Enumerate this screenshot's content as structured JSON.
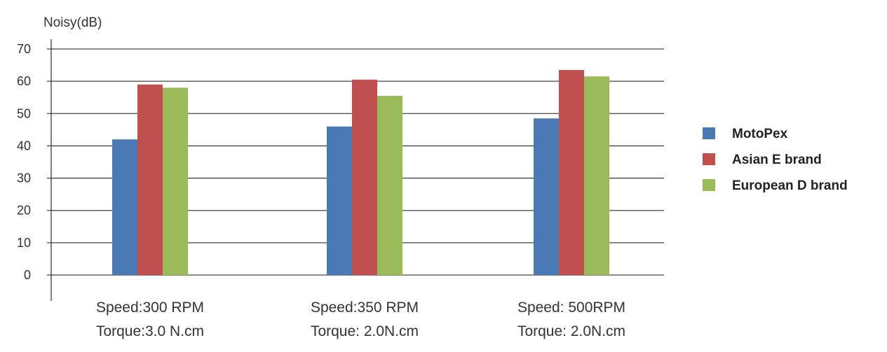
{
  "chart_data": {
    "type": "bar",
    "ylabel": "Noisy(dB)",
    "ylim": [
      0,
      70
    ],
    "yticks": [
      "0",
      "10",
      "20",
      "30",
      "40",
      "50",
      "60",
      "70"
    ],
    "grid": true,
    "legend_position": "right",
    "categories": [
      {
        "line1": "Speed:300 RPM",
        "line2": "Torque:3.0 N.cm"
      },
      {
        "line1": "Speed:350 RPM",
        "line2": "Torque: 2.0N.cm"
      },
      {
        "line1": "Speed: 500RPM",
        "line2": "Torque: 2.0N.cm"
      }
    ],
    "series": [
      {
        "name": "MotoPex",
        "color": "#4a7ab5",
        "values": [
          42,
          46,
          48.5
        ]
      },
      {
        "name": "Asian E brand",
        "color": "#c0504d",
        "values": [
          59,
          60.5,
          63.5
        ]
      },
      {
        "name": "European D brand",
        "color": "#9bbb59",
        "values": [
          58,
          55.5,
          61.5
        ]
      }
    ]
  }
}
